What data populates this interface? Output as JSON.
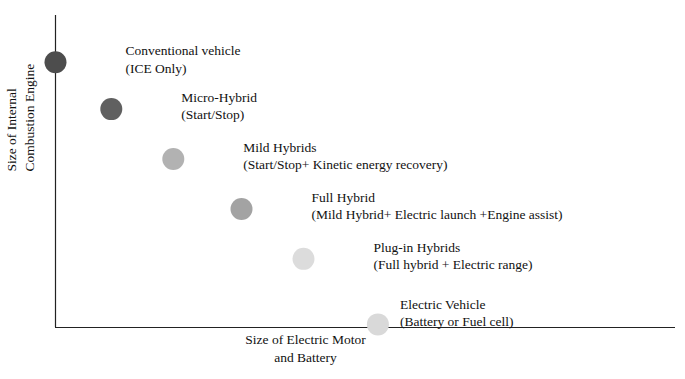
{
  "chart_data": {
    "type": "scatter",
    "x_label": "Size of Electric Motor\nand Battery",
    "y_label": "Size of Internal\nCombustion Engine",
    "labels": [
      "Conventional vehicle\n(ICE Only)",
      "Micro-Hybrid\n(Start/Stop)",
      "Mild Hybrids\n(Start/Stop+ Kinetic energy recovery)",
      "Full Hybrid\n(Mild Hybrid+ Electric launch +Engine assist)",
      "Plug-in Hybrids\n(Full hybrid + Electric range)",
      "Electric Vehicle\n(Battery or Fuel cell)"
    ],
    "x": [
      0,
      0.9,
      1.9,
      3.0,
      4.0,
      5.2
    ],
    "values": [
      8.5,
      7.0,
      5.4,
      3.8,
      2.2,
      0.1
    ],
    "colors": [
      "#4d4d4d",
      "#606060",
      "#b2b2b2",
      "#a3a3a3",
      "#dcdcdc",
      "#d9d9d9"
    ],
    "xlim": [
      0,
      10
    ],
    "ylim": [
      0,
      10
    ],
    "xticks": [],
    "yticks": [],
    "tick_labels": false,
    "grid": false
  }
}
